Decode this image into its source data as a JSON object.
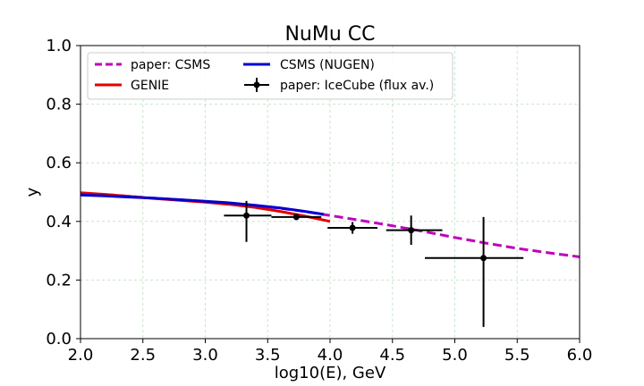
{
  "chart_data": {
    "type": "line",
    "title": "NuMu CC",
    "xlabel": "log10(E), GeV",
    "ylabel": "y",
    "xlim": [
      2.0,
      6.0
    ],
    "ylim": [
      0.0,
      1.0
    ],
    "xticks": [
      "2.0",
      "2.5",
      "3.0",
      "3.5",
      "4.0",
      "4.5",
      "5.0",
      "5.5",
      "6.0"
    ],
    "yticks": [
      "0.0",
      "0.2",
      "0.4",
      "0.6",
      "0.8",
      "1.0"
    ],
    "grid": true,
    "legend_position": "top-left",
    "series": [
      {
        "name": "paper: CSMS",
        "style": "dashed",
        "color": "#bf00bf",
        "x": [
          2.0,
          2.25,
          2.5,
          2.75,
          3.0,
          3.25,
          3.5,
          3.75,
          4.0,
          4.25,
          4.5,
          4.75,
          5.0,
          5.25,
          5.5,
          5.75,
          6.0
        ],
        "y": [
          0.495,
          0.49,
          0.482,
          0.475,
          0.468,
          0.46,
          0.45,
          0.437,
          0.42,
          0.403,
          0.385,
          0.366,
          0.345,
          0.326,
          0.308,
          0.293,
          0.279
        ]
      },
      {
        "name": "GENIE",
        "style": "solid",
        "color": "#e00000",
        "x": [
          2.0,
          2.2,
          2.4,
          2.6,
          2.8,
          3.0,
          3.2,
          3.4,
          3.6,
          3.8,
          4.0
        ],
        "y": [
          0.498,
          0.492,
          0.485,
          0.478,
          0.472,
          0.466,
          0.458,
          0.448,
          0.434,
          0.418,
          0.4
        ]
      },
      {
        "name": "CSMS (NUGEN)",
        "style": "solid",
        "color": "#0000d0",
        "x": [
          2.0,
          2.2,
          2.4,
          2.6,
          2.8,
          3.0,
          3.2,
          3.4,
          3.6,
          3.8,
          3.95
        ],
        "y": [
          0.49,
          0.487,
          0.483,
          0.479,
          0.474,
          0.469,
          0.463,
          0.455,
          0.446,
          0.434,
          0.424
        ]
      },
      {
        "name": "paper: IceCube (flux av.)",
        "style": "errorbar",
        "color": "#000000",
        "points": [
          {
            "x": 3.33,
            "y": 0.42,
            "xerr": [
              0.18,
              0.2
            ],
            "yerr": [
              0.09,
              0.05
            ]
          },
          {
            "x": 3.73,
            "y": 0.415,
            "xerr": [
              0.2,
              0.2
            ],
            "yerr": [
              0.01,
              0.01
            ]
          },
          {
            "x": 4.18,
            "y": 0.378,
            "xerr": [
              0.2,
              0.2
            ],
            "yerr": [
              0.02,
              0.02
            ]
          },
          {
            "x": 4.65,
            "y": 0.37,
            "xerr": [
              0.2,
              0.25
            ],
            "yerr": [
              0.05,
              0.05
            ]
          },
          {
            "x": 5.23,
            "y": 0.275,
            "xerr": [
              0.47,
              0.32
            ],
            "yerr": [
              0.235,
              0.14
            ]
          }
        ]
      }
    ]
  }
}
